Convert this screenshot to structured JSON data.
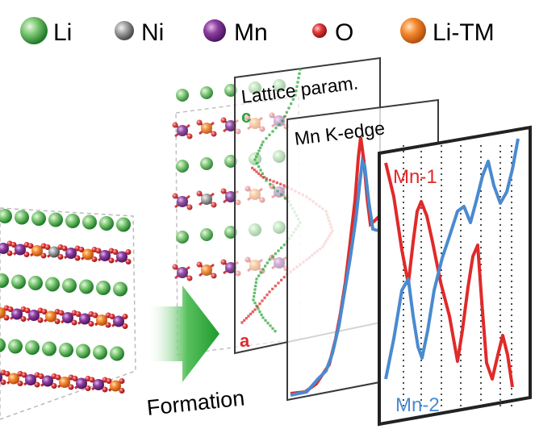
{
  "legend": {
    "items": [
      {
        "label": "Li",
        "color": "#2e9a3e",
        "icon": "green-sphere"
      },
      {
        "label": "Ni",
        "color": "#8a8a8a",
        "icon": "grey-sphere"
      },
      {
        "label": "Mn",
        "color": "#7b2a8c",
        "icon": "purple-sphere"
      },
      {
        "label": "O",
        "color": "#d8262b",
        "icon": "red-sphere"
      },
      {
        "label": "Li-TM",
        "color": "#f07a24",
        "icon": "orange-sphere"
      }
    ]
  },
  "arrow": {
    "label": "Formation",
    "color": "#2ea63a"
  },
  "panels": {
    "lattice": {
      "title": "Lattice param.",
      "label_c": "c",
      "label_a": "a"
    },
    "kedge": {
      "title": "Mn K-edge"
    },
    "components": {
      "label_mn1": "Mn-1",
      "label_mn2": "Mn-2"
    }
  },
  "colors": {
    "red": "#e02a2a",
    "blue": "#4a8ad0",
    "green": "#2ea63a"
  }
}
